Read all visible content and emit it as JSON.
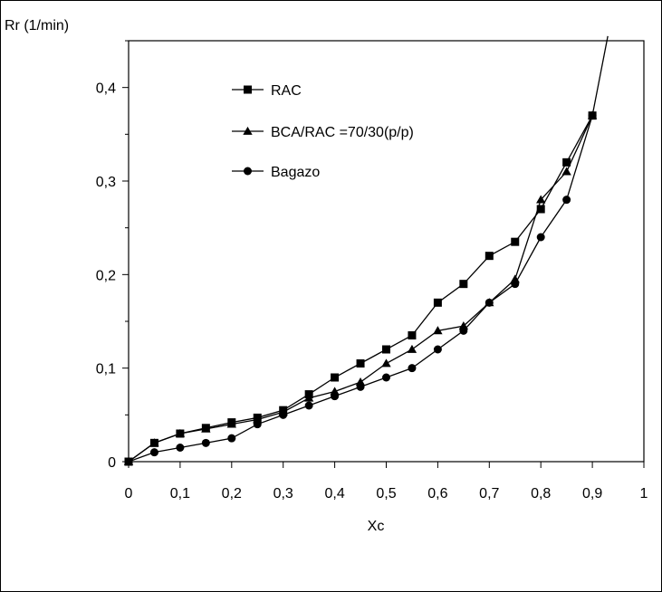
{
  "chart_data": {
    "type": "line",
    "title": "",
    "xlabel": "Xc",
    "ylabel": "Rr (1/min)",
    "xlim": [
      0,
      1
    ],
    "ylim": [
      0,
      0.45
    ],
    "x_ticks": [
      "0",
      "0,1",
      "0,2",
      "0,3",
      "0,4",
      "0,5",
      "0,6",
      "0,7",
      "0,8",
      "0,9",
      "1"
    ],
    "y_ticks": [
      "0",
      "0,1",
      "0,2",
      "0,3",
      "0,4"
    ],
    "grid": false,
    "legend_position": "top-left inside plot",
    "series": [
      {
        "name": "RAC",
        "marker": "square",
        "x": [
          0,
          0.05,
          0.1,
          0.15,
          0.2,
          0.25,
          0.3,
          0.35,
          0.4,
          0.45,
          0.5,
          0.55,
          0.6,
          0.65,
          0.7,
          0.75,
          0.8,
          0.85,
          0.9
        ],
        "y": [
          0,
          0.02,
          0.03,
          0.036,
          0.042,
          0.047,
          0.055,
          0.072,
          0.09,
          0.105,
          0.12,
          0.135,
          0.17,
          0.19,
          0.22,
          0.235,
          0.27,
          0.32,
          0.37
        ]
      },
      {
        "name": "BCA/RAC =70/30(p/p)",
        "marker": "triangle",
        "x": [
          0,
          0.05,
          0.1,
          0.15,
          0.2,
          0.25,
          0.3,
          0.35,
          0.4,
          0.45,
          0.5,
          0.55,
          0.6,
          0.65,
          0.7,
          0.75,
          0.8,
          0.85,
          0.9
        ],
        "y": [
          0,
          0.02,
          0.03,
          0.035,
          0.04,
          0.045,
          0.053,
          0.068,
          0.075,
          0.085,
          0.105,
          0.12,
          0.14,
          0.145,
          0.17,
          0.195,
          0.28,
          0.31,
          0.37
        ]
      },
      {
        "name": "Bagazo",
        "marker": "circle",
        "x": [
          0,
          0.05,
          0.1,
          0.15,
          0.2,
          0.25,
          0.3,
          0.35,
          0.4,
          0.45,
          0.5,
          0.55,
          0.6,
          0.65,
          0.7,
          0.75,
          0.8,
          0.85,
          0.9
        ],
        "y": [
          0,
          0.01,
          0.015,
          0.02,
          0.025,
          0.04,
          0.05,
          0.06,
          0.07,
          0.08,
          0.09,
          0.1,
          0.12,
          0.14,
          0.17,
          0.19,
          0.24,
          0.28,
          0.37
        ]
      }
    ],
    "extrapolation": {
      "x": [
        0.9,
        0.93
      ],
      "y": [
        0.37,
        0.455
      ]
    },
    "colors": {
      "line": "#000000",
      "marker": "#000000",
      "background": "#ffffff"
    }
  }
}
